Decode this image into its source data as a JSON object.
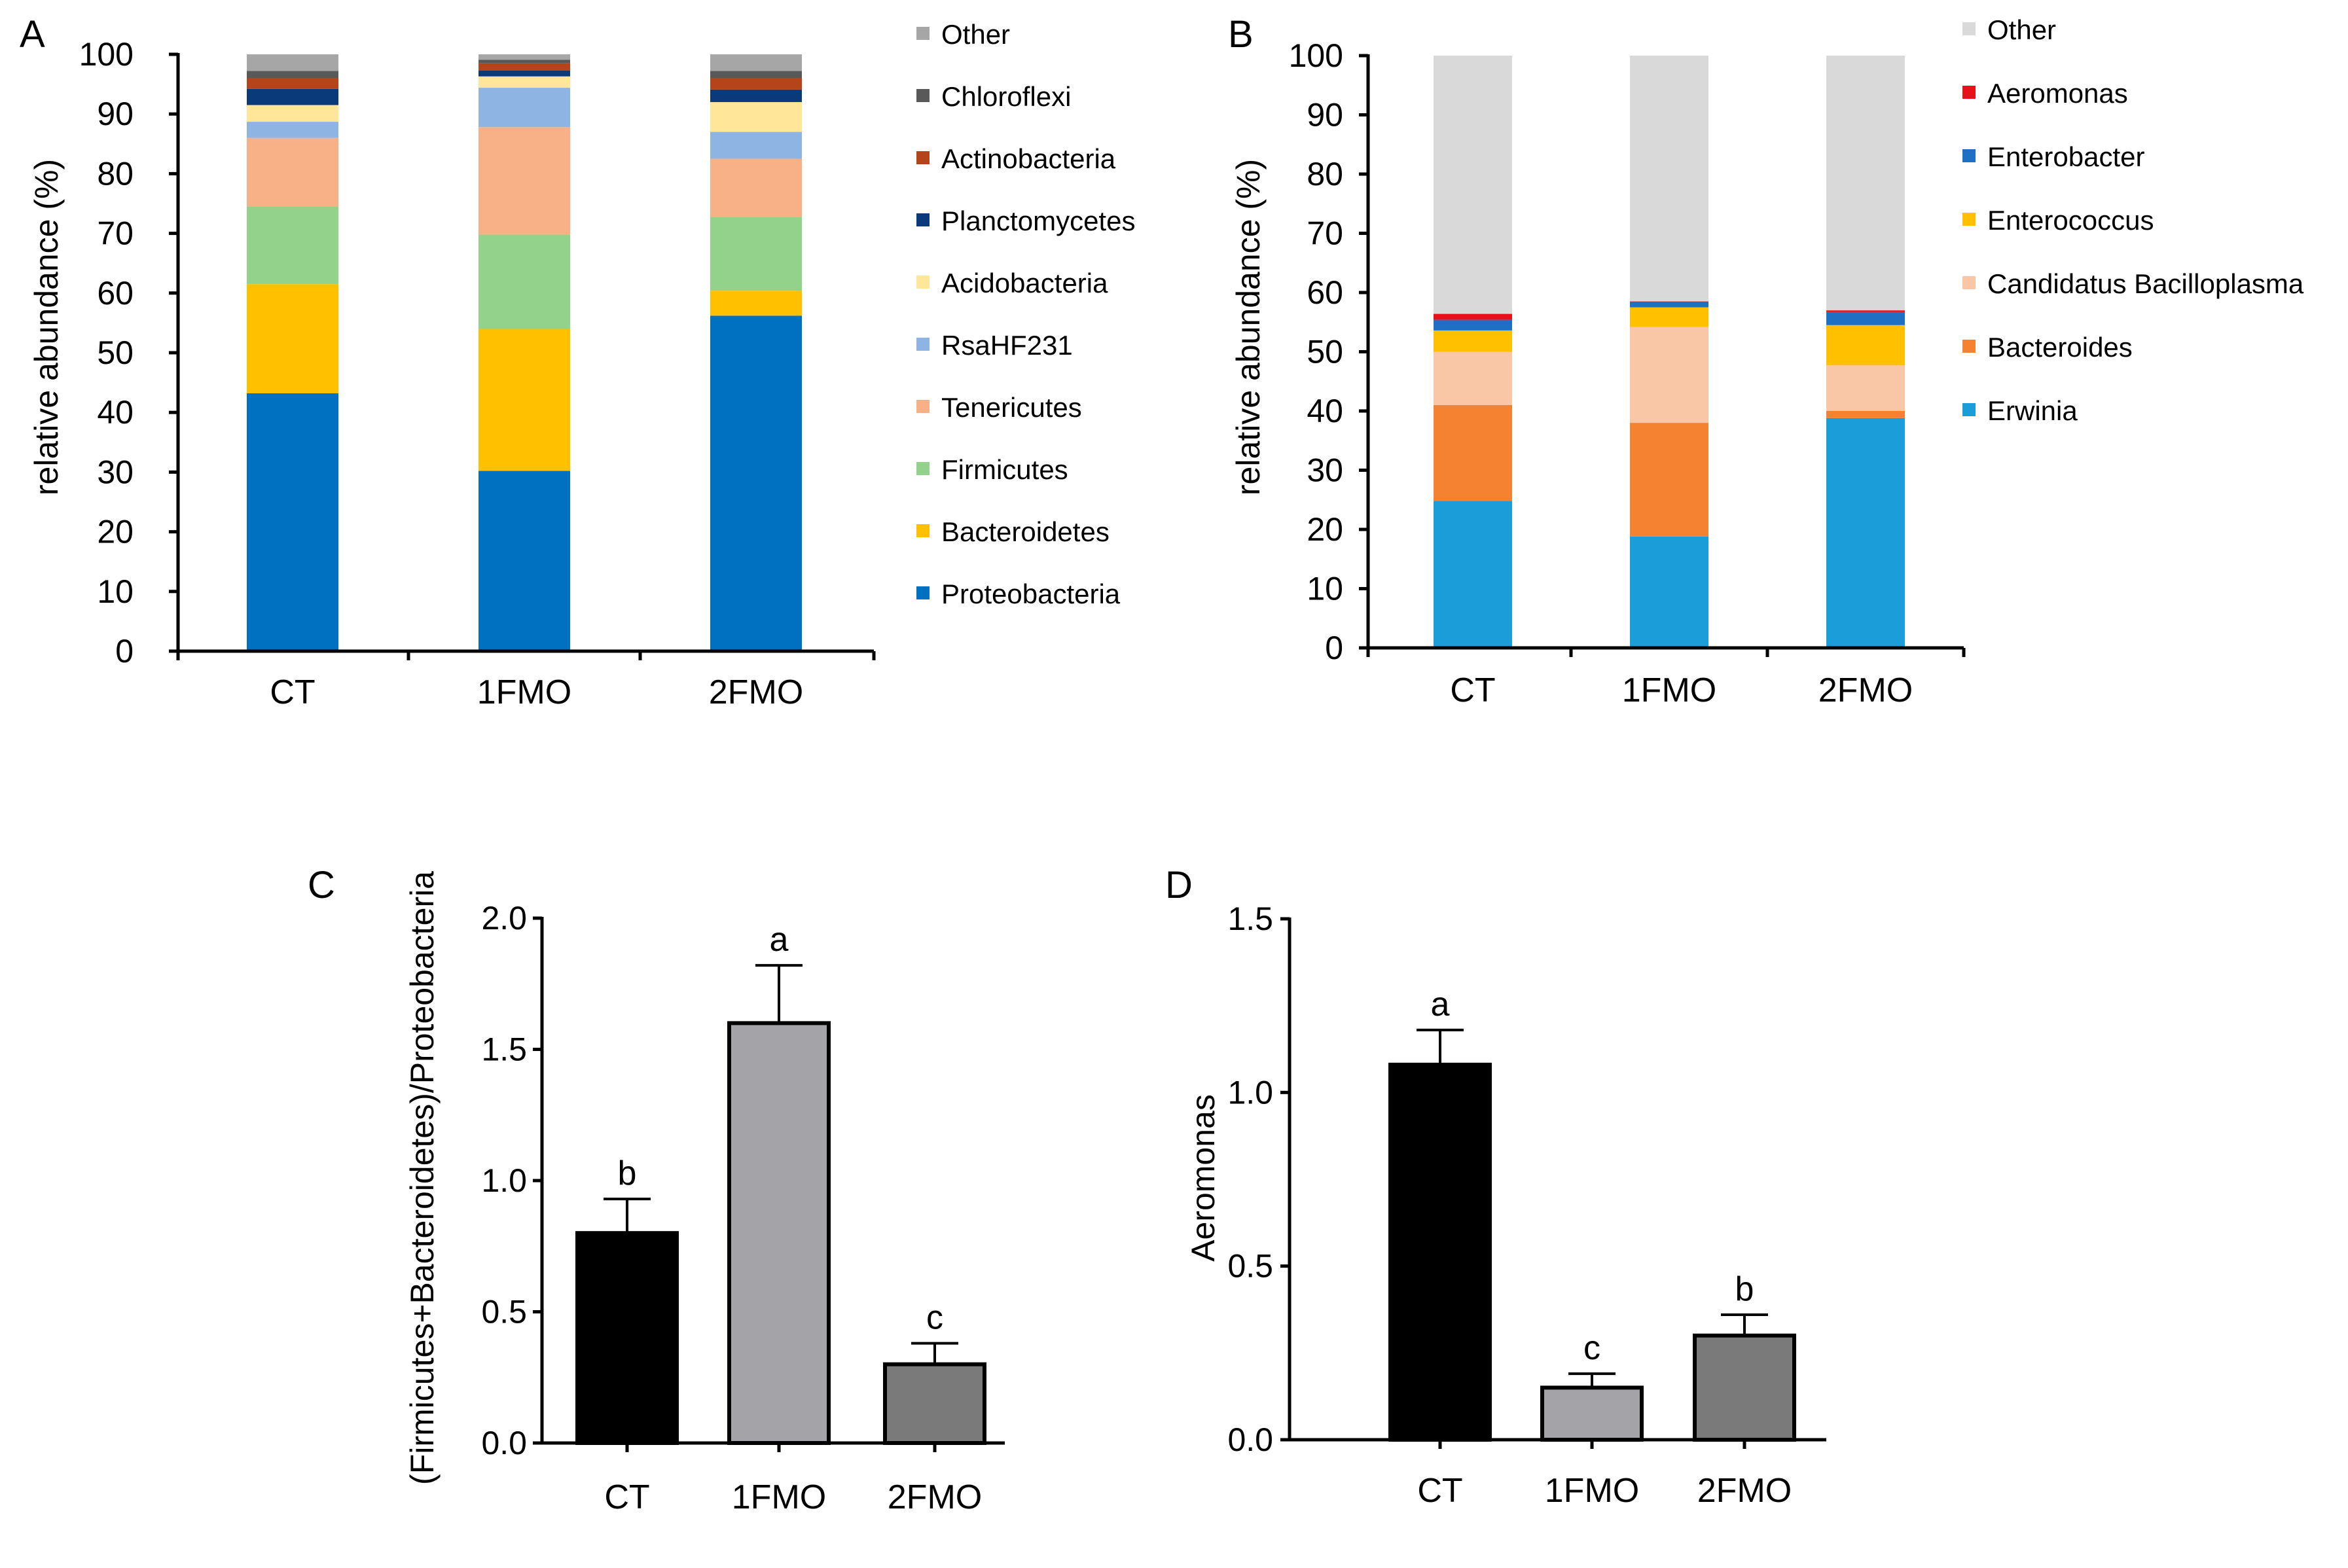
{
  "chart_data": [
    {
      "panel": "A",
      "type": "bar",
      "stacked": true,
      "categories": [
        "CT",
        "1FMO",
        "2FMO"
      ],
      "ylabel": "relative abundance (%)",
      "ylim": [
        0,
        100
      ],
      "yticks": [
        0,
        10,
        20,
        30,
        40,
        50,
        60,
        70,
        80,
        90,
        100
      ],
      "legend_position": "right",
      "series": [
        {
          "name": "Proteobacteria",
          "color": "#0070C0",
          "values": [
            43.2,
            30.2,
            56.2
          ]
        },
        {
          "name": "Bacteroidetes",
          "color": "#FFC000",
          "values": [
            18.3,
            23.8,
            4.2
          ]
        },
        {
          "name": "Firmicutes",
          "color": "#92D28A",
          "values": [
            13.0,
            15.8,
            12.3
          ]
        },
        {
          "name": "Tenericutes",
          "color": "#F8B186",
          "values": [
            11.5,
            18.0,
            9.8
          ]
        },
        {
          "name": "RsaHF231",
          "color": "#8EB4E3",
          "values": [
            2.7,
            6.6,
            4.5
          ]
        },
        {
          "name": "Acidobacteria",
          "color": "#FFE699",
          "values": [
            2.8,
            1.9,
            5.0
          ]
        },
        {
          "name": "Planctomycetes",
          "color": "#0B3A7A",
          "values": [
            2.7,
            1.0,
            2.1
          ]
        },
        {
          "name": "Actinobacteria",
          "color": "#B5441A",
          "values": [
            1.8,
            1.2,
            1.9
          ]
        },
        {
          "name": "Chloroflexi",
          "color": "#595959",
          "values": [
            1.2,
            0.6,
            1.2
          ]
        },
        {
          "name": "Other",
          "color": "#A6A6A6",
          "values": [
            2.8,
            0.9,
            2.8
          ]
        }
      ]
    },
    {
      "panel": "B",
      "type": "bar",
      "stacked": true,
      "categories": [
        "CT",
        "1FMO",
        "2FMO"
      ],
      "ylabel": "relative abundance (%)",
      "ylim": [
        0,
        100
      ],
      "yticks": [
        0,
        10,
        20,
        30,
        40,
        50,
        60,
        70,
        80,
        90,
        100
      ],
      "legend_position": "right",
      "series": [
        {
          "name": "Erwinia",
          "color": "#1B9DD9",
          "values": [
            24.8,
            18.8,
            38.8
          ]
        },
        {
          "name": "Bacteroides",
          "color": "#F58231",
          "values": [
            16.2,
            19.2,
            1.2
          ]
        },
        {
          "name": "Candidatus Bacilloplasma",
          "color": "#FAC7A6",
          "values": [
            9.0,
            16.2,
            7.7
          ]
        },
        {
          "name": "Enterococcus",
          "color": "#FFC000",
          "values": [
            3.6,
            3.3,
            6.8
          ]
        },
        {
          "name": "Enterobacter",
          "color": "#1F6FC5",
          "values": [
            1.8,
            0.9,
            2.2
          ]
        },
        {
          "name": "Aeromonas",
          "color": "#E8111B",
          "values": [
            1.0,
            0.1,
            0.3
          ]
        },
        {
          "name": "Other",
          "color": "#D9D9D9",
          "values": [
            43.6,
            41.5,
            43.0
          ]
        }
      ]
    },
    {
      "panel": "C",
      "type": "bar",
      "categories": [
        "CT",
        "1FMO",
        "2FMO"
      ],
      "values": [
        0.8,
        1.6,
        0.3
      ],
      "errors": [
        0.13,
        0.22,
        0.08
      ],
      "significance": [
        "b",
        "a",
        "c"
      ],
      "colors": [
        "#000000",
        "#A4A4A8",
        "#7A7A7A"
      ],
      "ylabel": "(Firmicutes+Bacteroidetes)/Proteobacteria",
      "ylim": [
        0,
        2.0
      ],
      "yticks": [
        "0.0",
        "0.5",
        "1.0",
        "1.5",
        "2.0"
      ]
    },
    {
      "panel": "D",
      "type": "bar",
      "categories": [
        "CT",
        "1FMO",
        "2FMO"
      ],
      "values": [
        1.08,
        0.15,
        0.3
      ],
      "errors": [
        0.1,
        0.04,
        0.06
      ],
      "significance": [
        "a",
        "c",
        "b"
      ],
      "colors": [
        "#000000",
        "#A4A4A8",
        "#7A7A7A"
      ],
      "ylabel": "Aeromonas",
      "ylim": [
        0,
        1.5
      ],
      "yticks": [
        "0.0",
        "0.5",
        "1.0",
        "1.5"
      ]
    }
  ]
}
